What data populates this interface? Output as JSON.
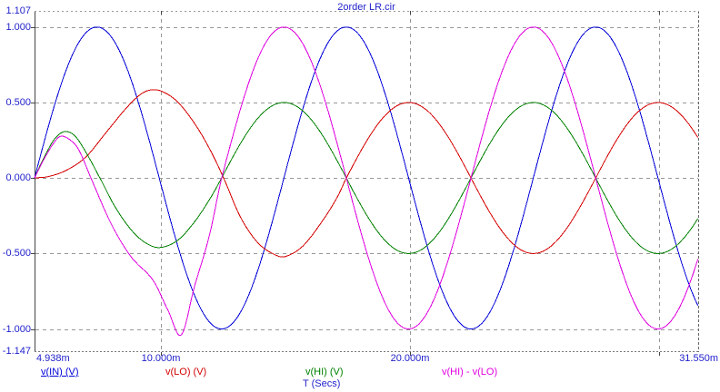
{
  "title": "2order LR.cir",
  "chart_data": {
    "type": "line",
    "title": "2order LR.cir",
    "xlabel": "T (Secs)",
    "x_unit": "ms",
    "x_range_ms": [
      4.938,
      31.55
    ],
    "y_range": [
      -1.147,
      1.107
    ],
    "grid": true,
    "x_axis": {
      "ticks": [
        {
          "t": 4.938,
          "label": "4.938m"
        },
        {
          "t": 10.0,
          "label": "10.000m"
        },
        {
          "t": 20.0,
          "label": "20.000m"
        },
        {
          "t": 31.55,
          "label": "31.550m"
        }
      ],
      "grid_ms": [
        10.0,
        20.0,
        30.0
      ]
    },
    "y_axis": {
      "ticks": [
        {
          "v": 1.107,
          "label": "1.107"
        },
        {
          "v": 1.0,
          "label": "1.000"
        },
        {
          "v": 0.5,
          "label": "0.500"
        },
        {
          "v": 0.0,
          "label": "0.000"
        },
        {
          "v": -0.5,
          "label": "-0.500"
        },
        {
          "v": -1.0,
          "label": "-1.000"
        },
        {
          "v": -1.147,
          "label": "-1.147"
        }
      ],
      "grid_v": [
        1.0,
        0.5,
        0.0,
        -0.5,
        -1.0
      ]
    },
    "series": [
      {
        "name": "v(IN) (V)",
        "color": "#0000d8",
        "selected": true,
        "steady": {
          "amp": 1.0,
          "period_ms": 10.0,
          "tzero_ms": 4.938
        },
        "transient": []
      },
      {
        "name": "v(LO) (V)",
        "color": "#d40000",
        "selected": false,
        "steady": {
          "amp": 0.5,
          "period_ms": 10.0,
          "tzero_ms": 17.44
        },
        "transient": [
          [
            4.938,
            0.0
          ],
          [
            5.5,
            0.01
          ],
          [
            6.2,
            0.05
          ],
          [
            7.0,
            0.14
          ],
          [
            7.8,
            0.3
          ],
          [
            8.6,
            0.46
          ],
          [
            9.2,
            0.555
          ],
          [
            9.65,
            0.585
          ],
          [
            10.1,
            0.57
          ],
          [
            10.7,
            0.5
          ],
          [
            11.4,
            0.35
          ],
          [
            12.0,
            0.18
          ],
          [
            12.52,
            0.0
          ],
          [
            13.2,
            -0.26
          ],
          [
            13.9,
            -0.43
          ],
          [
            14.6,
            -0.51
          ],
          [
            15.0,
            -0.52
          ],
          [
            15.7,
            -0.45
          ],
          [
            16.5,
            -0.28
          ],
          [
            17.1,
            -0.12
          ],
          [
            17.44,
            0.0
          ]
        ]
      },
      {
        "name": "v(HI) (V)",
        "color": "#008000",
        "selected": false,
        "steady": {
          "amp": 0.5,
          "period_ms": 10.0,
          "tzero_ms": 12.44
        },
        "transient": [
          [
            4.938,
            0.0
          ],
          [
            5.3,
            0.13
          ],
          [
            5.75,
            0.26
          ],
          [
            6.14,
            0.307
          ],
          [
            6.55,
            0.28
          ],
          [
            7.0,
            0.17
          ],
          [
            7.56,
            0.0
          ],
          [
            8.2,
            -0.2
          ],
          [
            8.9,
            -0.36
          ],
          [
            9.5,
            -0.44
          ],
          [
            10.0,
            -0.46
          ],
          [
            10.7,
            -0.41
          ],
          [
            11.4,
            -0.28
          ],
          [
            12.0,
            -0.13
          ],
          [
            12.44,
            0.0
          ]
        ]
      },
      {
        "name": "v(HI) - v(LO)",
        "color": "#e000e0",
        "selected": false,
        "steady": {
          "amp": 1.0,
          "period_ms": 10.0,
          "tzero_ms": 12.44
        },
        "transient": [
          [
            4.938,
            0.0
          ],
          [
            5.3,
            0.12
          ],
          [
            5.7,
            0.23
          ],
          [
            5.96,
            0.275
          ],
          [
            6.3,
            0.26
          ],
          [
            6.7,
            0.19
          ],
          [
            7.2,
            0.0
          ],
          [
            8.0,
            -0.3
          ],
          [
            8.8,
            -0.52
          ],
          [
            9.7,
            -0.68
          ],
          [
            10.3,
            -0.88
          ],
          [
            10.82,
            -1.04
          ],
          [
            11.35,
            -0.72
          ],
          [
            11.95,
            -0.38
          ],
          [
            12.44,
            0.0
          ]
        ]
      }
    ],
    "colors": {
      "axis_text": "#2222cc",
      "grid": "#979797",
      "border_dark": "#444444"
    }
  }
}
